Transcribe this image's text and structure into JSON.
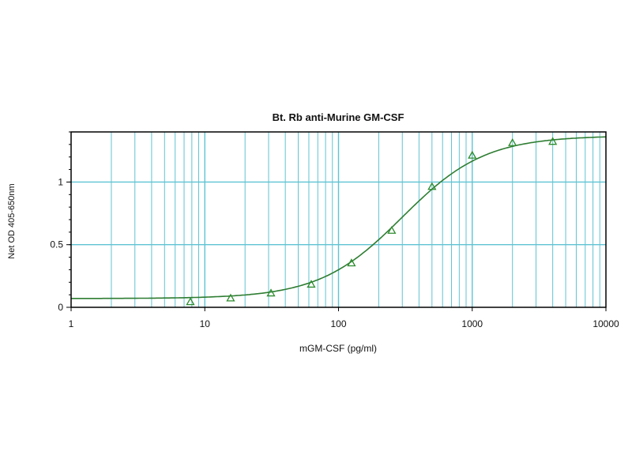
{
  "chart_data": {
    "type": "scatter",
    "title": "Bt. Rb anti-Murine GM-CSF",
    "xlabel": "mGM-CSF (pg/ml)",
    "ylabel": "Net OD  405-650nm",
    "xscale": "log",
    "xlim": [
      1,
      10000
    ],
    "ylim": [
      0,
      1.4
    ],
    "x_ticks": [
      1,
      10,
      100,
      1000,
      10000
    ],
    "x_tick_labels": [
      "1",
      "10",
      "100",
      "1000",
      "10000"
    ],
    "y_ticks": [
      0,
      0.5,
      1
    ],
    "y_tick_labels": [
      "0",
      "0.5",
      "1"
    ],
    "grid": true,
    "series": [
      {
        "marker": "triangle",
        "x": [
          7.8,
          15.6,
          31.25,
          62.5,
          125,
          250,
          500,
          1000,
          2000,
          4000
        ],
        "y": [
          0.04,
          0.07,
          0.11,
          0.18,
          0.35,
          0.61,
          0.96,
          1.21,
          1.31,
          1.32
        ]
      }
    ],
    "fit_curve": {
      "model": "4PL",
      "bottom": 0.07,
      "top": 1.37,
      "ec50": 300,
      "hill": 1.4
    },
    "colors": {
      "grid": "#5fc3d3",
      "curve": "#2e7d32",
      "marker": "#2e8b2e",
      "axis": "#000000"
    }
  }
}
